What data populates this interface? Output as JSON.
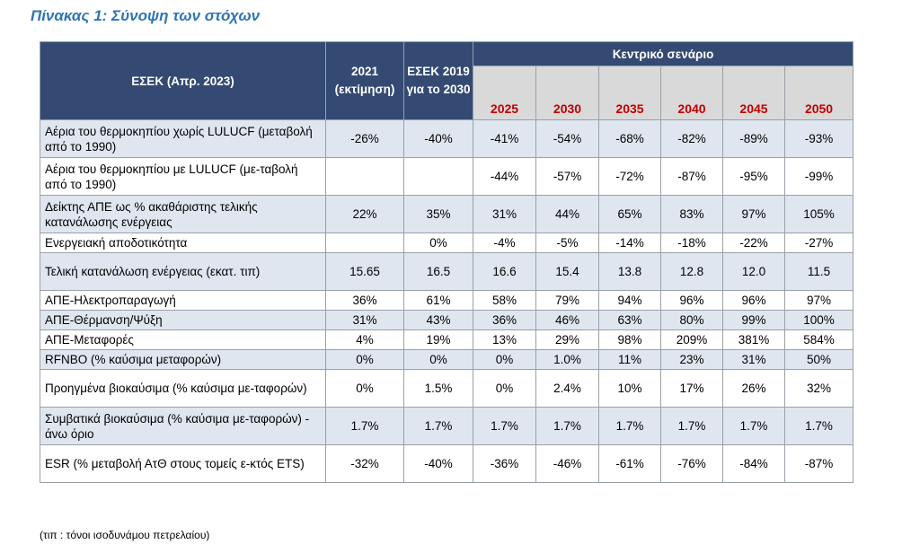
{
  "title": "Πίνακας 1: Σύνοψη των στόχων",
  "table": {
    "header": {
      "col0": "ΕΣΕΚ (Απρ. 2023)",
      "col1": "2021 (εκτίμηση)",
      "col2": "ΕΣΕΚ 2019 για το 2030",
      "group": "Κεντρικό σενάριο",
      "years": [
        "2025",
        "2030",
        "2035",
        "2040",
        "2045",
        "2050"
      ]
    },
    "rows": [
      {
        "label": "Αέρια του θερμοκηπίου χωρίς LULUCF (μεταβολή από το 1990)",
        "v2021": "-26%",
        "v2019": "-40%",
        "values": [
          "-41%",
          "-54%",
          "-68%",
          "-82%",
          "-89%",
          "-93%"
        ]
      },
      {
        "label": "Αέρια του θερμοκηπίου με LULUCF (με-ταβολή από το 1990)",
        "v2021": "",
        "v2019": "",
        "values": [
          "-44%",
          "-57%",
          "-72%",
          "-87%",
          "-95%",
          "-99%"
        ]
      },
      {
        "label": "Δείκτης ΑΠΕ ως % ακαθάριστης τελικής κατανάλωσης ενέργειας",
        "v2021": "22%",
        "v2019": "35%",
        "values": [
          "31%",
          "44%",
          "65%",
          "83%",
          "97%",
          "105%"
        ]
      },
      {
        "label": "Ενεργειακή αποδοτικότητα",
        "v2021": "",
        "v2019": "0%",
        "values": [
          "-4%",
          "-5%",
          "-14%",
          "-18%",
          "-22%",
          "-27%"
        ]
      },
      {
        "label": "Τελική κατανάλωση ενέργειας (εκατ. τιπ)",
        "v2021": "15.65",
        "v2019": "16.5",
        "values": [
          "16.6",
          "15.4",
          "13.8",
          "12.8",
          "12.0",
          "11.5"
        ]
      },
      {
        "label": "ΑΠΕ-Ηλεκτροπαραγωγή",
        "v2021": "36%",
        "v2019": "61%",
        "values": [
          "58%",
          "79%",
          "94%",
          "96%",
          "96%",
          "97%"
        ]
      },
      {
        "label": "ΑΠΕ-Θέρμανση/Ψύξη",
        "v2021": "31%",
        "v2019": "43%",
        "values": [
          "36%",
          "46%",
          "63%",
          "80%",
          "99%",
          "100%"
        ]
      },
      {
        "label": "ΑΠΕ-Μεταφορές",
        "v2021": "4%",
        "v2019": "19%",
        "values": [
          "13%",
          "29%",
          "98%",
          "209%",
          "381%",
          "584%"
        ]
      },
      {
        "label": "RFNBO (% καύσιμα μεταφορών)",
        "v2021": "0%",
        "v2019": "0%",
        "values": [
          "0%",
          "1.0%",
          "11%",
          "23%",
          "31%",
          "50%"
        ]
      },
      {
        "label": "Προηγμένα βιοκαύσιμα (% καύσιμα με-ταφορών)",
        "v2021": "0%",
        "v2019": "1.5%",
        "values": [
          "0%",
          "2.4%",
          "10%",
          "17%",
          "26%",
          "32%"
        ]
      },
      {
        "label": "Συμβατικά βιοκαύσιμα (% καύσιμα με-ταφορών) - άνω όριο",
        "v2021": "1.7%",
        "v2019": "1.7%",
        "values": [
          "1.7%",
          "1.7%",
          "1.7%",
          "1.7%",
          "1.7%",
          "1.7%"
        ]
      },
      {
        "label": "ESR (% μεταβολή ΑτΘ στους τομείς ε-κτός ETS)",
        "v2021": "-32%",
        "v2019": "-40%",
        "values": [
          "-36%",
          "-46%",
          "-61%",
          "-76%",
          "-84%",
          "-87%"
        ]
      }
    ]
  },
  "note": "(τιπ : τόνοι ισοδυνάμου πετρελαίου)"
}
